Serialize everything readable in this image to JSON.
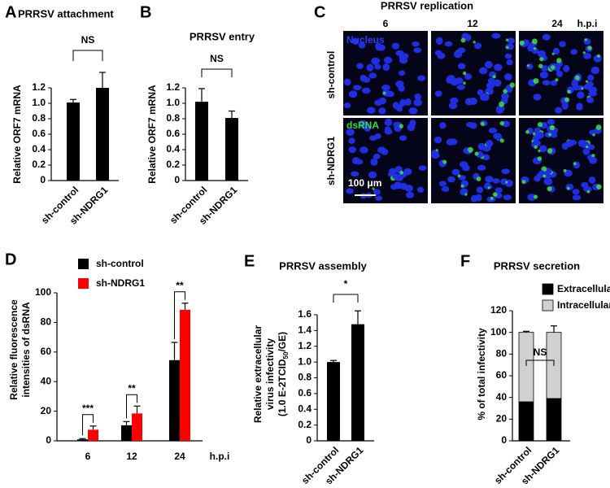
{
  "chart_data": [
    {
      "type": "bar",
      "panel": "A",
      "title": "PRRSV attachment",
      "ylabel": [
        "Relative ORF7 mRNA"
      ],
      "categories": [
        "sh-control",
        "sh-NDRG1"
      ],
      "values": [
        1.01,
        1.2
      ],
      "errors": [
        0.04,
        0.2
      ],
      "color": "#000000",
      "ylim": [
        0,
        1.2
      ],
      "yticks": [
        0,
        0.2,
        0.4,
        0.6,
        0.8,
        {
          "value": 1,
          "label": "1.0"
        },
        1.2
      ],
      "annotations": [
        "NS"
      ]
    },
    {
      "type": "bar",
      "panel": "B",
      "title": "PRRSV entry",
      "ylabel": [
        "Relative ORF7 mRNA"
      ],
      "categories": [
        "sh-control",
        "sh-NDRG1"
      ],
      "values": [
        1.02,
        0.81
      ],
      "errors": [
        0.17,
        0.09
      ],
      "color": "#000000",
      "ylim": [
        0,
        1.2
      ],
      "yticks": [
        0,
        0.2,
        0.4,
        0.6,
        0.8,
        {
          "value": 1,
          "label": "1.0"
        },
        1.2
      ],
      "annotations": [
        "NS"
      ]
    },
    {
      "type": "grouped_bar",
      "panel": "D",
      "ylabel": [
        "Relative fluorescence",
        "intensities of dsRNA"
      ],
      "xlabel": "h.p.i",
      "categories": [
        "6",
        "12",
        "24"
      ],
      "series": [
        {
          "name": "sh-control",
          "color": "#000000",
          "values": [
            1,
            10.5,
            54.5
          ],
          "errors": [
            0.5,
            2.5,
            12
          ]
        },
        {
          "name": "sh-NDRG1",
          "color": "#ff0000",
          "values": [
            7.5,
            18.5,
            88.5
          ],
          "errors": [
            2.5,
            5,
            4.5
          ]
        }
      ],
      "ylim": [
        0,
        100
      ],
      "yticks": [
        0,
        20,
        40,
        60,
        80,
        100
      ],
      "annotations": [
        "***",
        "**",
        "**"
      ],
      "legend": "top-left"
    },
    {
      "type": "bar",
      "panel": "E",
      "title": "PRRSV assembly",
      "ylabel": [
        "Relative extracellular",
        "virus infectivity"
      ],
      "ylabel_unit": [
        "(1.0 E-2TCID",
        "50",
        "/GE)"
      ],
      "categories": [
        "sh-control",
        "sh-NDRG1"
      ],
      "values": [
        1.0,
        1.48
      ],
      "errors": [
        0.02,
        0.17
      ],
      "color": "#000000",
      "ylim": [
        0,
        1.6
      ],
      "yticks": [
        0,
        0.2,
        0.4,
        0.6,
        0.8,
        {
          "value": 1,
          "label": "1.0"
        },
        1.2,
        1.4,
        1.6
      ],
      "annotations": [
        "*"
      ]
    },
    {
      "type": "stacked_bar",
      "panel": "F",
      "title": "PRRSV secretion",
      "ylabel": [
        "% of total infectivity"
      ],
      "categories": [
        "sh-control",
        "sh-NDRG1"
      ],
      "series": [
        {
          "name": "Extracellular",
          "color": "#000000",
          "values": [
            36,
            39
          ],
          "errors": [
            6,
            1.5
          ]
        },
        {
          "name": "Intracellular",
          "color": "#d0d0d0",
          "values": [
            64,
            61
          ],
          "errors": [
            1,
            6
          ]
        }
      ],
      "ylim": [
        0,
        120
      ],
      "yticks": [
        0,
        20,
        40,
        60,
        80,
        100,
        120
      ],
      "annotations": [
        "NS"
      ],
      "legend": "top-right"
    }
  ],
  "image_panel": {
    "panel": "C",
    "title": "PRRSV replication",
    "columns": [
      "6",
      "12",
      "24"
    ],
    "column_unit": "h.p.i",
    "rows": [
      "sh-control",
      "sh-NDRG1"
    ],
    "stain_labels": [
      "Nucleus",
      "dsRNA"
    ],
    "scale_bar": "100 μm"
  }
}
